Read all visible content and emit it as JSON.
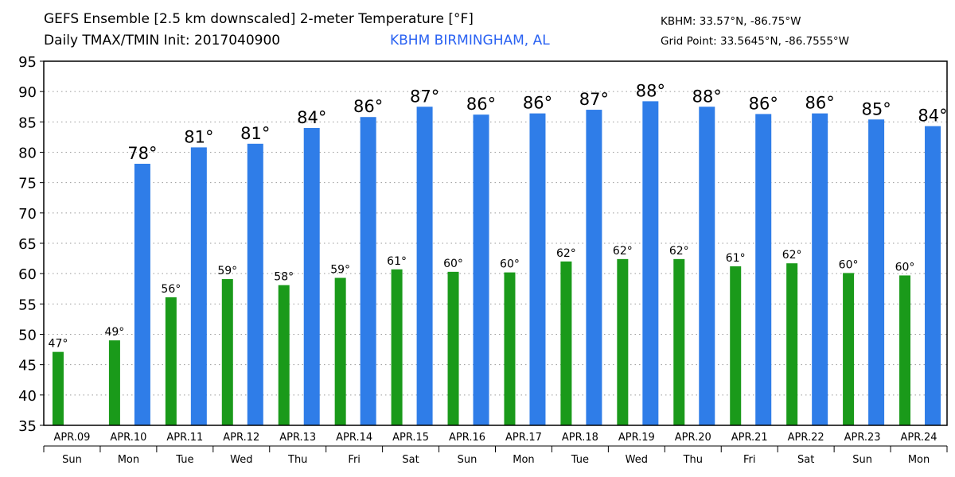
{
  "header": {
    "title_line1": "GEFS Ensemble [2.5 km downscaled] 2-meter Temperature [°F]",
    "title_line2": "Daily TMAX/TMIN Init: 2017040900",
    "station": "KBHM BIRMINGHAM, AL",
    "station_coords": "KBHM: 33.57°N, -86.75°W",
    "grid_point": "Grid Point: 33.5645°N, -86.7555°W"
  },
  "chart_data": {
    "type": "bar",
    "categories": [
      "APR.09",
      "APR.10",
      "APR.11",
      "APR.12",
      "APR.13",
      "APR.14",
      "APR.15",
      "APR.16",
      "APR.17",
      "APR.18",
      "APR.19",
      "APR.20",
      "APR.21",
      "APR.22",
      "APR.23",
      "APR.24"
    ],
    "days": [
      "Sun",
      "Mon",
      "Tue",
      "Wed",
      "Thu",
      "Fri",
      "Sat",
      "Sun",
      "Mon",
      "Tue",
      "Wed",
      "Thu",
      "Fri",
      "Sat",
      "Sun",
      "Mon"
    ],
    "series": [
      {
        "key": "tmin",
        "color": "#1a9a1a",
        "values": [
          47.1,
          49.0,
          56.1,
          59.1,
          58.1,
          59.3,
          60.7,
          60.3,
          60.2,
          62.0,
          62.4,
          62.4,
          61.2,
          61.7,
          60.1,
          59.7
        ],
        "labels": [
          "47°",
          "49°",
          "56°",
          "59°",
          "58°",
          "59°",
          "61°",
          "60°",
          "60°",
          "62°",
          "62°",
          "62°",
          "61°",
          "62°",
          "60°",
          "60°"
        ]
      },
      {
        "key": "tmax",
        "color": "#2f7de8",
        "values": [
          null,
          78.1,
          80.8,
          81.4,
          84.0,
          85.8,
          87.5,
          86.2,
          86.4,
          87.0,
          88.4,
          87.5,
          86.3,
          86.4,
          85.4,
          84.3
        ],
        "labels": [
          "",
          "78°",
          "81°",
          "81°",
          "84°",
          "86°",
          "87°",
          "86°",
          "86°",
          "87°",
          "88°",
          "88°",
          "86°",
          "86°",
          "85°",
          "84°"
        ]
      }
    ],
    "ylim": [
      35,
      95
    ],
    "yticks": [
      35,
      40,
      45,
      50,
      55,
      60,
      65,
      70,
      75,
      80,
      85,
      90,
      95
    ],
    "grid": true
  }
}
